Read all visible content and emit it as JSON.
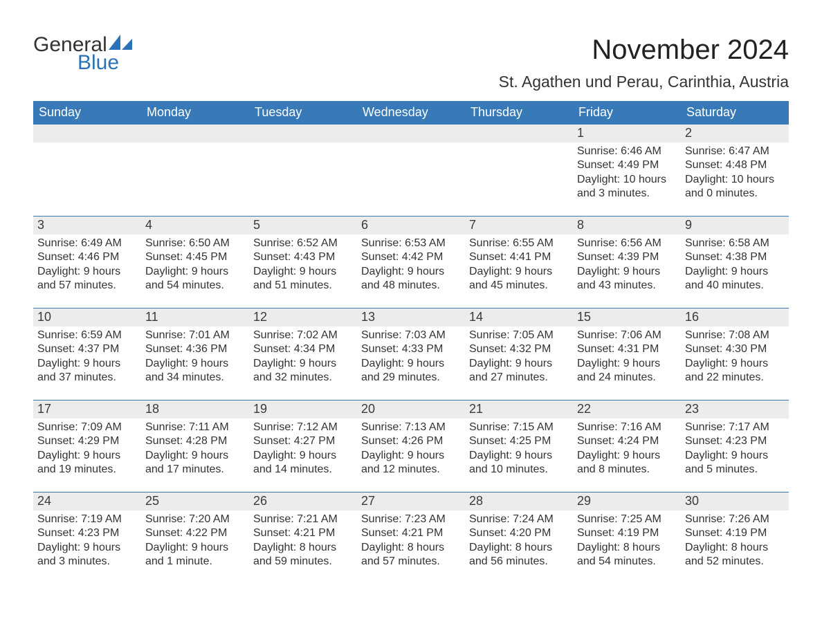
{
  "brand": {
    "text1": "General",
    "text2": "Blue",
    "icon_color": "#2a72b5"
  },
  "title": "November 2024",
  "location": "St. Agathen und Perau, Carinthia, Austria",
  "colors": {
    "header_bg": "#3879b7",
    "header_text": "#ffffff",
    "daynum_bg": "#ececec",
    "body_text": "#333333",
    "rule": "#3879b7"
  },
  "weekdays": [
    "Sunday",
    "Monday",
    "Tuesday",
    "Wednesday",
    "Thursday",
    "Friday",
    "Saturday"
  ],
  "weeks": [
    [
      {
        "n": "",
        "sun": "",
        "set": "",
        "day": ""
      },
      {
        "n": "",
        "sun": "",
        "set": "",
        "day": ""
      },
      {
        "n": "",
        "sun": "",
        "set": "",
        "day": ""
      },
      {
        "n": "",
        "sun": "",
        "set": "",
        "day": ""
      },
      {
        "n": "",
        "sun": "",
        "set": "",
        "day": ""
      },
      {
        "n": "1",
        "sun": "Sunrise: 6:46 AM",
        "set": "Sunset: 4:49 PM",
        "day": "Daylight: 10 hours and 3 minutes."
      },
      {
        "n": "2",
        "sun": "Sunrise: 6:47 AM",
        "set": "Sunset: 4:48 PM",
        "day": "Daylight: 10 hours and 0 minutes."
      }
    ],
    [
      {
        "n": "3",
        "sun": "Sunrise: 6:49 AM",
        "set": "Sunset: 4:46 PM",
        "day": "Daylight: 9 hours and 57 minutes."
      },
      {
        "n": "4",
        "sun": "Sunrise: 6:50 AM",
        "set": "Sunset: 4:45 PM",
        "day": "Daylight: 9 hours and 54 minutes."
      },
      {
        "n": "5",
        "sun": "Sunrise: 6:52 AM",
        "set": "Sunset: 4:43 PM",
        "day": "Daylight: 9 hours and 51 minutes."
      },
      {
        "n": "6",
        "sun": "Sunrise: 6:53 AM",
        "set": "Sunset: 4:42 PM",
        "day": "Daylight: 9 hours and 48 minutes."
      },
      {
        "n": "7",
        "sun": "Sunrise: 6:55 AM",
        "set": "Sunset: 4:41 PM",
        "day": "Daylight: 9 hours and 45 minutes."
      },
      {
        "n": "8",
        "sun": "Sunrise: 6:56 AM",
        "set": "Sunset: 4:39 PM",
        "day": "Daylight: 9 hours and 43 minutes."
      },
      {
        "n": "9",
        "sun": "Sunrise: 6:58 AM",
        "set": "Sunset: 4:38 PM",
        "day": "Daylight: 9 hours and 40 minutes."
      }
    ],
    [
      {
        "n": "10",
        "sun": "Sunrise: 6:59 AM",
        "set": "Sunset: 4:37 PM",
        "day": "Daylight: 9 hours and 37 minutes."
      },
      {
        "n": "11",
        "sun": "Sunrise: 7:01 AM",
        "set": "Sunset: 4:36 PM",
        "day": "Daylight: 9 hours and 34 minutes."
      },
      {
        "n": "12",
        "sun": "Sunrise: 7:02 AM",
        "set": "Sunset: 4:34 PM",
        "day": "Daylight: 9 hours and 32 minutes."
      },
      {
        "n": "13",
        "sun": "Sunrise: 7:03 AM",
        "set": "Sunset: 4:33 PM",
        "day": "Daylight: 9 hours and 29 minutes."
      },
      {
        "n": "14",
        "sun": "Sunrise: 7:05 AM",
        "set": "Sunset: 4:32 PM",
        "day": "Daylight: 9 hours and 27 minutes."
      },
      {
        "n": "15",
        "sun": "Sunrise: 7:06 AM",
        "set": "Sunset: 4:31 PM",
        "day": "Daylight: 9 hours and 24 minutes."
      },
      {
        "n": "16",
        "sun": "Sunrise: 7:08 AM",
        "set": "Sunset: 4:30 PM",
        "day": "Daylight: 9 hours and 22 minutes."
      }
    ],
    [
      {
        "n": "17",
        "sun": "Sunrise: 7:09 AM",
        "set": "Sunset: 4:29 PM",
        "day": "Daylight: 9 hours and 19 minutes."
      },
      {
        "n": "18",
        "sun": "Sunrise: 7:11 AM",
        "set": "Sunset: 4:28 PM",
        "day": "Daylight: 9 hours and 17 minutes."
      },
      {
        "n": "19",
        "sun": "Sunrise: 7:12 AM",
        "set": "Sunset: 4:27 PM",
        "day": "Daylight: 9 hours and 14 minutes."
      },
      {
        "n": "20",
        "sun": "Sunrise: 7:13 AM",
        "set": "Sunset: 4:26 PM",
        "day": "Daylight: 9 hours and 12 minutes."
      },
      {
        "n": "21",
        "sun": "Sunrise: 7:15 AM",
        "set": "Sunset: 4:25 PM",
        "day": "Daylight: 9 hours and 10 minutes."
      },
      {
        "n": "22",
        "sun": "Sunrise: 7:16 AM",
        "set": "Sunset: 4:24 PM",
        "day": "Daylight: 9 hours and 8 minutes."
      },
      {
        "n": "23",
        "sun": "Sunrise: 7:17 AM",
        "set": "Sunset: 4:23 PM",
        "day": "Daylight: 9 hours and 5 minutes."
      }
    ],
    [
      {
        "n": "24",
        "sun": "Sunrise: 7:19 AM",
        "set": "Sunset: 4:23 PM",
        "day": "Daylight: 9 hours and 3 minutes."
      },
      {
        "n": "25",
        "sun": "Sunrise: 7:20 AM",
        "set": "Sunset: 4:22 PM",
        "day": "Daylight: 9 hours and 1 minute."
      },
      {
        "n": "26",
        "sun": "Sunrise: 7:21 AM",
        "set": "Sunset: 4:21 PM",
        "day": "Daylight: 8 hours and 59 minutes."
      },
      {
        "n": "27",
        "sun": "Sunrise: 7:23 AM",
        "set": "Sunset: 4:21 PM",
        "day": "Daylight: 8 hours and 57 minutes."
      },
      {
        "n": "28",
        "sun": "Sunrise: 7:24 AM",
        "set": "Sunset: 4:20 PM",
        "day": "Daylight: 8 hours and 56 minutes."
      },
      {
        "n": "29",
        "sun": "Sunrise: 7:25 AM",
        "set": "Sunset: 4:19 PM",
        "day": "Daylight: 8 hours and 54 minutes."
      },
      {
        "n": "30",
        "sun": "Sunrise: 7:26 AM",
        "set": "Sunset: 4:19 PM",
        "day": "Daylight: 8 hours and 52 minutes."
      }
    ]
  ]
}
